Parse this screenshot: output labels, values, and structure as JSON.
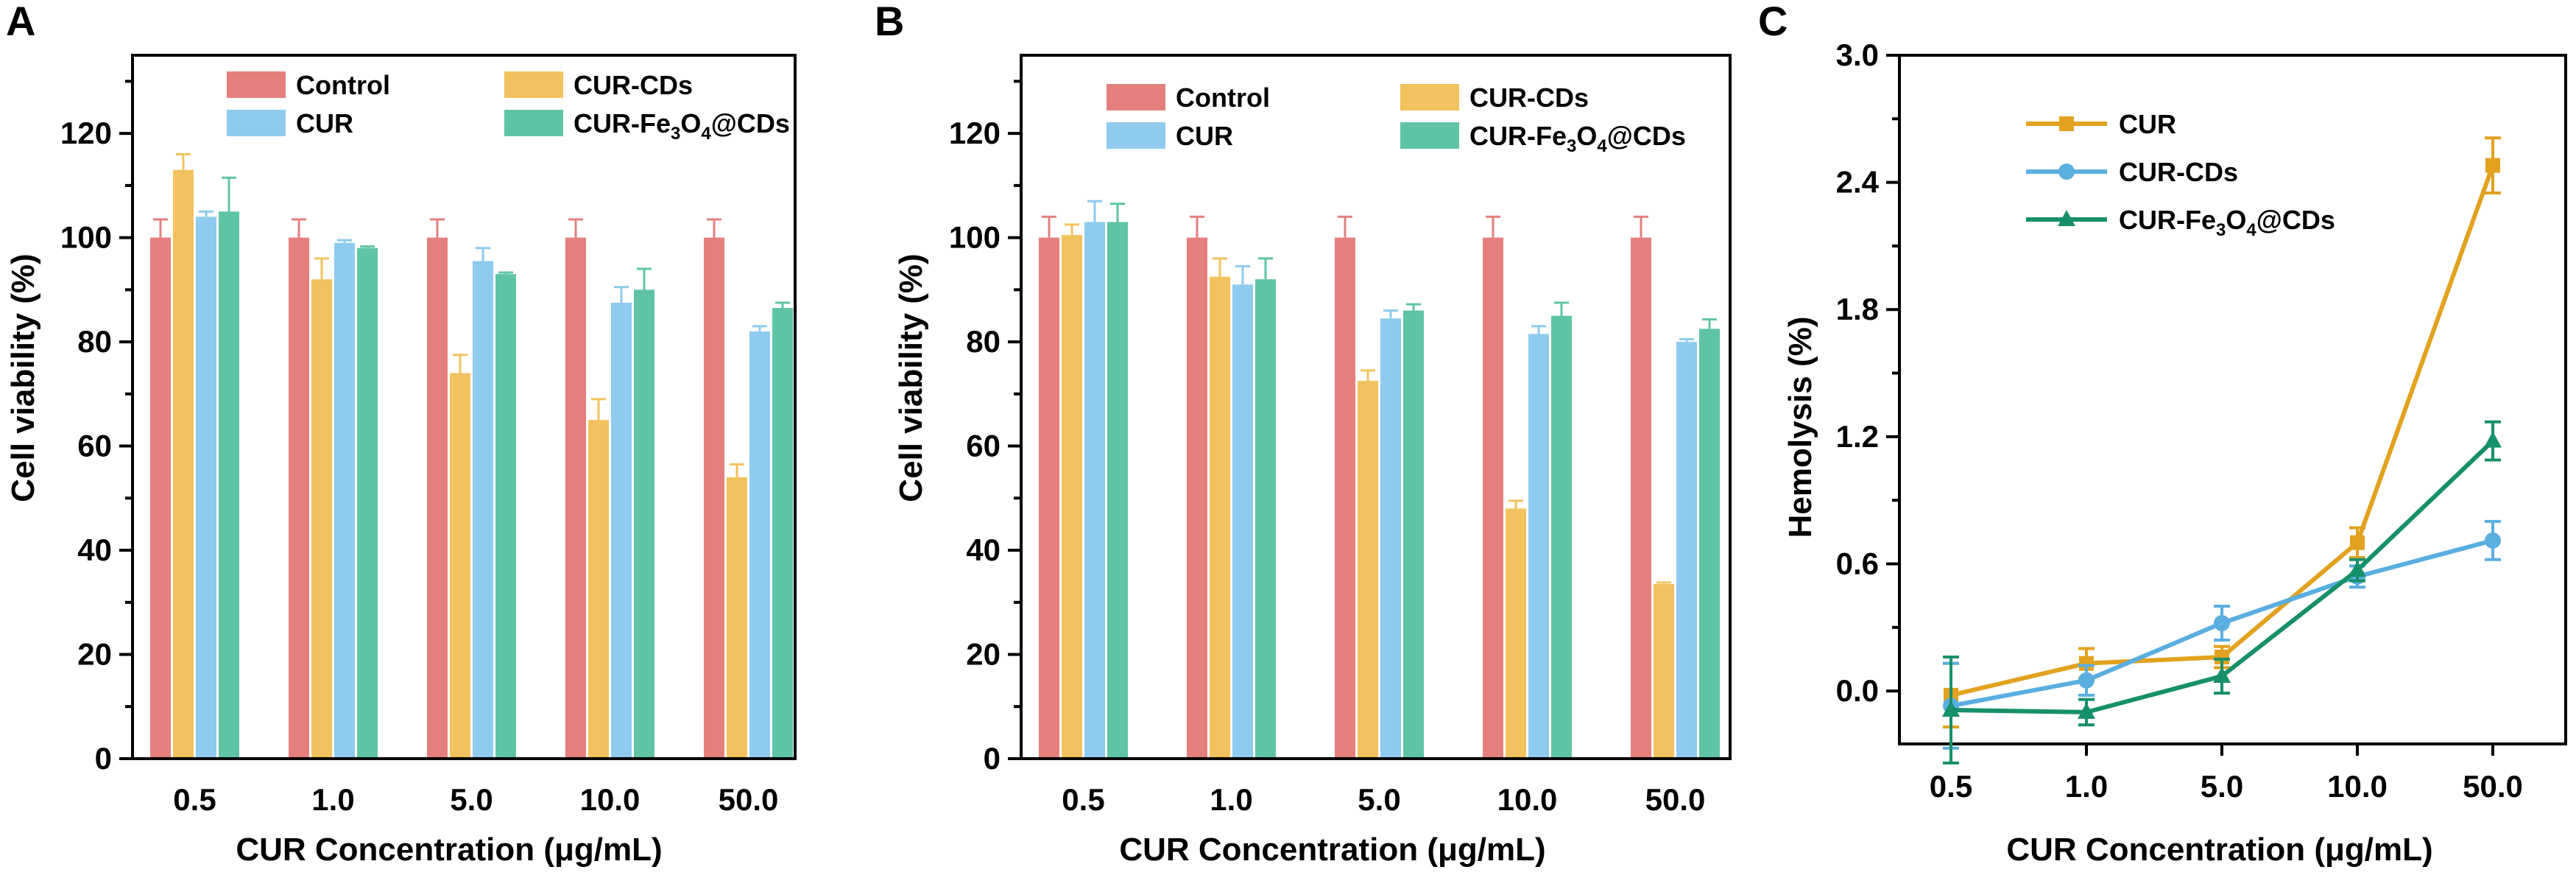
{
  "colors": {
    "control": "#e47f7d",
    "cur_bar": "#8ecbee",
    "cur_cds_bar": "#f2c25e",
    "cur_fe3o4_bar": "#5fc4a6",
    "cur_line": "#e2a21f",
    "cur_cds_line": "#5aaee0",
    "cur_fe3o4_line": "#16906a",
    "axis": "#000000"
  },
  "chart_data": [
    {
      "panel": "A",
      "type": "bar",
      "xlabel": "CUR Concentration (μg/mL)",
      "ylabel": "Cell viability (%)",
      "ylim": [
        0,
        135
      ],
      "yticks": [
        "0",
        "20",
        "40",
        "60",
        "80",
        "100",
        "120"
      ],
      "categories": [
        "0.5",
        "1.0",
        "5.0",
        "10.0",
        "50.0"
      ],
      "series": [
        {
          "name": "Control",
          "legend_text": "Control",
          "color_key": "control",
          "values": [
            100,
            100,
            100,
            100,
            100
          ],
          "errors": [
            3.5,
            3.5,
            3.5,
            3.5,
            3.5
          ]
        },
        {
          "name": "CUR-CDs",
          "legend_text": "CUR-CDs",
          "color_key": "cur_cds_bar",
          "values": [
            113,
            92,
            74,
            65,
            54
          ],
          "errors": [
            3,
            4,
            3.5,
            4,
            2.5
          ]
        },
        {
          "name": "CUR",
          "legend_text": "CUR",
          "color_key": "cur_bar",
          "values": [
            104,
            99,
            95.5,
            87.5,
            82
          ],
          "errors": [
            1,
            0.5,
            2.5,
            3,
            1
          ]
        },
        {
          "name": "CUR-Fe3O4@CDs",
          "legend_text": "CUR-Fe",
          "legend_sub": "3",
          "legend_mid": "O",
          "legend_sub2": "4",
          "legend_tail": "@CDs",
          "color_key": "cur_fe3o4_bar",
          "values": [
            105,
            98,
            93,
            90,
            86.5
          ],
          "errors": [
            6.5,
            0.3,
            0.3,
            4,
            1
          ]
        }
      ],
      "legend_position": "top"
    },
    {
      "panel": "B",
      "type": "bar",
      "xlabel": "CUR Concentration (μg/mL)",
      "ylabel": "Cell viability (%)",
      "ylim": [
        0,
        135
      ],
      "yticks": [
        "0",
        "20",
        "40",
        "60",
        "80",
        "100",
        "120"
      ],
      "categories": [
        "0.5",
        "1.0",
        "5.0",
        "10.0",
        "50.0"
      ],
      "series": [
        {
          "name": "Control",
          "legend_text": "Control",
          "color_key": "control",
          "values": [
            100,
            100,
            100,
            100,
            100
          ],
          "errors": [
            4,
            4,
            4,
            4,
            4
          ]
        },
        {
          "name": "CUR-CDs",
          "legend_text": "CUR-CDs",
          "color_key": "cur_cds_bar",
          "values": [
            100.5,
            92.5,
            72.5,
            48,
            33.5
          ],
          "errors": [
            2,
            3.5,
            2,
            1.5,
            0.3
          ]
        },
        {
          "name": "CUR",
          "legend_text": "CUR",
          "color_key": "cur_bar",
          "values": [
            103,
            91,
            84.5,
            81.5,
            80
          ],
          "errors": [
            4,
            3.5,
            1.5,
            1.5,
            0.5
          ]
        },
        {
          "name": "CUR-Fe3O4@CDs",
          "legend_text": "CUR-Fe",
          "legend_sub": "3",
          "legend_mid": "O",
          "legend_sub2": "4",
          "legend_tail": "@CDs",
          "color_key": "cur_fe3o4_bar",
          "values": [
            103,
            92,
            86,
            85,
            82.5
          ],
          "errors": [
            3.5,
            4,
            1.2,
            2.5,
            1.8
          ]
        }
      ],
      "legend_position": "top"
    },
    {
      "panel": "C",
      "type": "line",
      "xlabel": "CUR Concentration (μg/mL)",
      "ylabel": "Hemolysis (%)",
      "ylim": [
        -0.25,
        3.0
      ],
      "yticks": [
        "0.0",
        "0.6",
        "1.2",
        "1.8",
        "2.4",
        "3.0"
      ],
      "categories": [
        "0.5",
        "1.0",
        "5.0",
        "10.0",
        "50.0"
      ],
      "series": [
        {
          "name": "CUR",
          "legend_text": "CUR",
          "color_key": "cur_line",
          "marker": "square",
          "values": [
            -0.02,
            0.13,
            0.16,
            0.7,
            2.48
          ],
          "errors": [
            0.15,
            0.07,
            0.05,
            0.07,
            0.13
          ]
        },
        {
          "name": "CUR-CDs",
          "legend_text": "CUR-CDs",
          "color_key": "cur_cds_line",
          "marker": "circle",
          "values": [
            -0.07,
            0.05,
            0.32,
            0.54,
            0.71
          ],
          "errors": [
            0.2,
            0.07,
            0.08,
            0.05,
            0.09
          ]
        },
        {
          "name": "CUR-Fe3O4@CDs",
          "legend_text": "CUR-Fe",
          "legend_sub": "3",
          "legend_mid": "O",
          "legend_sub2": "4",
          "legend_tail": "@CDs",
          "color_key": "cur_fe3o4_line",
          "marker": "triangle",
          "values": [
            -0.09,
            -0.1,
            0.07,
            0.57,
            1.18
          ],
          "errors": [
            0.25,
            0.06,
            0.08,
            0.05,
            0.09
          ]
        }
      ],
      "legend_position": "top-left"
    }
  ]
}
